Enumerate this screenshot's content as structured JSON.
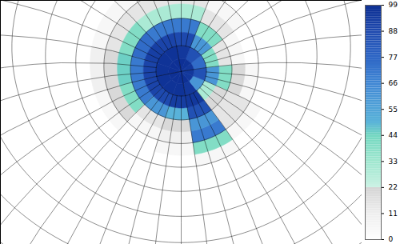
{
  "chart_data": {
    "type": "map",
    "lat_edges": [
      50,
      55,
      60,
      65,
      70,
      75,
      80,
      85,
      90
    ],
    "lon_edges": [
      -180,
      -150,
      -120,
      -90,
      -60,
      -30,
      0,
      30,
      60,
      90,
      120,
      150,
      180
    ],
    "cells": [
      [
        0,
        0,
        0,
        5,
        0,
        0,
        0,
        0,
        0,
        0,
        0,
        0
      ],
      [
        5,
        0,
        5,
        40,
        5,
        0,
        0,
        0,
        5,
        5,
        5,
        10
      ],
      [
        20,
        5,
        10,
        70,
        15,
        5,
        0,
        5,
        15,
        15,
        15,
        20
      ],
      [
        40,
        15,
        20,
        60,
        15,
        20,
        5,
        15,
        30,
        30,
        40,
        45
      ],
      [
        70,
        60,
        50,
        85,
        20,
        40,
        15,
        40,
        70,
        70,
        75,
        70
      ],
      [
        90,
        88,
        93,
        95,
        30,
        60,
        40,
        60,
        88,
        90,
        92,
        90
      ],
      [
        97,
        97,
        97,
        95,
        60,
        85,
        75,
        85,
        95,
        97,
        97,
        97
      ],
      [
        98,
        98,
        98,
        98,
        95,
        95,
        95,
        97,
        98,
        98,
        98,
        98
      ]
    ],
    "colorbar_range": [
      0,
      99
    ],
    "colorbar_ticks": [
      0,
      11,
      22,
      33,
      44,
      55,
      66,
      77,
      88,
      99
    ]
  }
}
